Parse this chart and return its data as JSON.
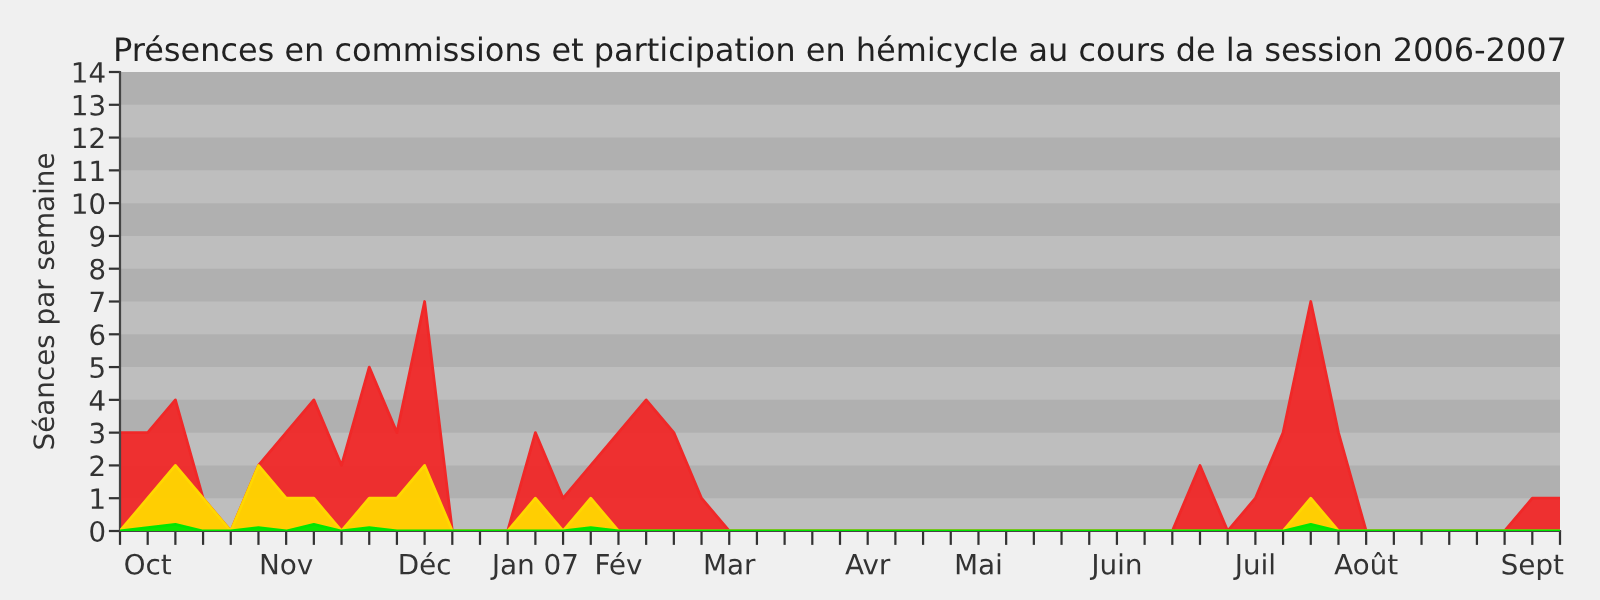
{
  "chart_data": {
    "type": "area",
    "title": "Présences en commissions et participation en hémicycle au cours de la session 2006-2007",
    "ylabel": "Séances par semaine",
    "categories": [
      null,
      "Oct",
      null,
      null,
      null,
      null,
      "Nov",
      null,
      null,
      null,
      null,
      "Déc",
      null,
      null,
      null,
      "Jan 07",
      null,
      null,
      "Fév",
      null,
      null,
      null,
      "Mar",
      null,
      null,
      null,
      null,
      "Avr",
      null,
      null,
      null,
      "Mai",
      null,
      null,
      null,
      null,
      "Juin",
      null,
      null,
      null,
      null,
      "Juil",
      null,
      null,
      null,
      "Août",
      null,
      null,
      null,
      null,
      null,
      "Sept",
      null
    ],
    "series": [
      {
        "color": "#f02828",
        "values": [
          3,
          3,
          4,
          1,
          0,
          2,
          3,
          4,
          2,
          5,
          3,
          7,
          0,
          0,
          0,
          3,
          1,
          2,
          3,
          4,
          3,
          1,
          0,
          0,
          0,
          0,
          0,
          0,
          0,
          0,
          0,
          0,
          0,
          0,
          0,
          0,
          0,
          0,
          0,
          2,
          0,
          1,
          3,
          7,
          3,
          0,
          0,
          0,
          0,
          0,
          0,
          1,
          1
        ]
      },
      {
        "color": "#ffd700",
        "values": [
          0,
          1,
          2,
          1,
          0,
          2,
          1,
          1,
          0,
          1,
          1,
          2,
          0,
          0,
          0,
          1,
          0,
          1,
          0,
          0,
          0,
          0,
          0,
          0,
          0,
          0,
          0,
          0,
          0,
          0,
          0,
          0,
          0,
          0,
          0,
          0,
          0,
          0,
          0,
          0,
          0,
          0,
          0,
          1,
          0,
          0,
          0,
          0,
          0,
          0,
          0,
          0,
          0
        ]
      },
      {
        "color": "#00e600",
        "values": [
          0,
          0.1,
          0.2,
          0,
          0,
          0.1,
          0,
          0.2,
          0,
          0.1,
          0,
          0,
          0,
          0,
          0,
          0,
          0,
          0.1,
          0,
          0,
          0,
          0,
          0,
          0,
          0,
          0,
          0,
          0,
          0,
          0,
          0,
          0,
          0,
          0,
          0,
          0,
          0,
          0,
          0,
          0,
          0,
          0,
          0,
          0.2,
          0,
          0,
          0,
          0,
          0,
          0,
          0,
          0,
          0
        ]
      }
    ],
    "ylim": [
      0,
      14
    ],
    "yticks": [
      0,
      1,
      2,
      3,
      4,
      5,
      6,
      7,
      8,
      9,
      10,
      11,
      12,
      13,
      14
    ],
    "bands": [
      {
        "axis": "y",
        "from": 1,
        "to": 2,
        "color": "#b0b0b0"
      },
      {
        "axis": "y",
        "from": 3,
        "to": 4,
        "color": "#b0b0b0"
      },
      {
        "axis": "y",
        "from": 5,
        "to": 6,
        "color": "#b0b0b0"
      },
      {
        "axis": "y",
        "from": 7,
        "to": 8,
        "color": "#b0b0b0"
      },
      {
        "axis": "y",
        "from": 9,
        "to": 10,
        "color": "#b0b0b0"
      },
      {
        "axis": "y",
        "from": 11,
        "to": 12,
        "color": "#b0b0b0"
      },
      {
        "axis": "y",
        "from": 13,
        "to": 14,
        "color": "#b0b0b0"
      }
    ],
    "legend": false
  }
}
